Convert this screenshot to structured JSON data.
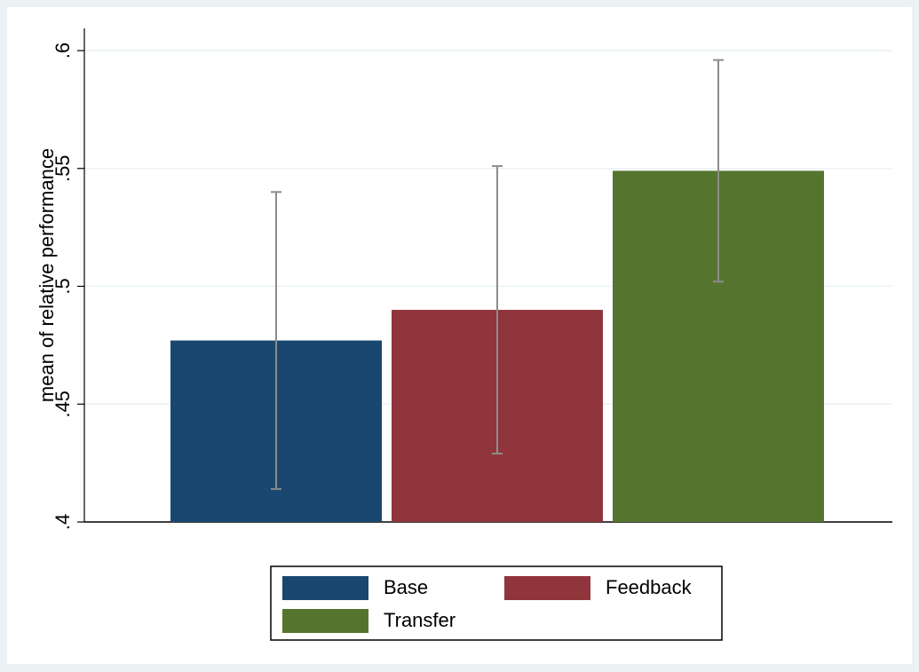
{
  "chart_data": {
    "type": "bar",
    "y_label": "mean of relative performance",
    "ylim": [
      0.4,
      0.6
    ],
    "yticks": [
      {
        "value": 0.4,
        "label": ".4"
      },
      {
        "value": 0.45,
        "label": ".45"
      },
      {
        "value": 0.5,
        "label": ".5"
      },
      {
        "value": 0.55,
        "label": ".55"
      },
      {
        "value": 0.6,
        "label": ".6"
      }
    ],
    "grid": true,
    "legend_position": "bottom",
    "series": [
      {
        "name": "Base",
        "color": "#1a476f",
        "values": [
          0.477
        ],
        "errors": [
          0.063
        ]
      },
      {
        "name": "Feedback",
        "color": "#90353b",
        "values": [
          0.49
        ],
        "errors": [
          0.061
        ]
      },
      {
        "name": "Transfer",
        "color": "#55752f",
        "values": [
          0.549
        ],
        "errors": [
          0.047
        ]
      }
    ]
  }
}
